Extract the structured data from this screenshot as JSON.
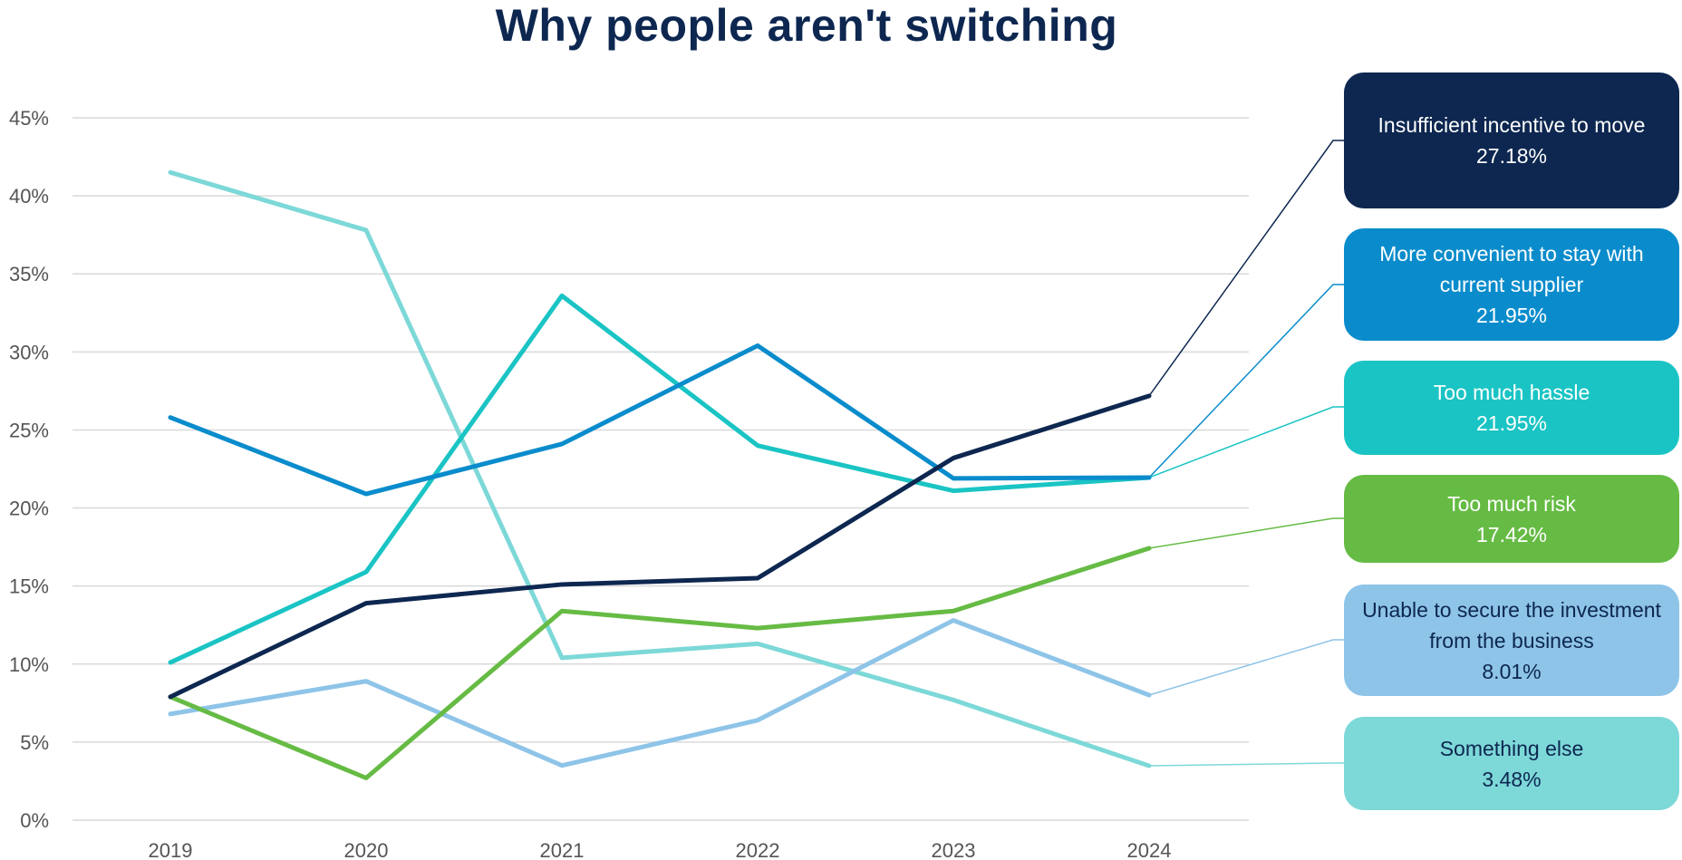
{
  "chart_data": {
    "type": "line",
    "title": "Why people aren't switching",
    "xlabel": "",
    "ylabel": "",
    "x": [
      "2019",
      "2020",
      "2021",
      "2022",
      "2023",
      "2024"
    ],
    "ylim": [
      0,
      45
    ],
    "yticks": [
      0,
      5,
      10,
      15,
      20,
      25,
      30,
      35,
      40,
      45
    ],
    "ytick_labels": [
      "0%",
      "5%",
      "10%",
      "15%",
      "20%",
      "25%",
      "30%",
      "35%",
      "40%",
      "45%"
    ],
    "grid": true,
    "legend": "callouts-right",
    "series": [
      {
        "name": "Insufficient incentive to move",
        "value_label": "27.18%",
        "color": "#0d2750",
        "text_color": "#ffffff",
        "values": [
          7.9,
          13.9,
          15.1,
          15.5,
          23.2,
          27.18
        ]
      },
      {
        "name": "More convenient to stay with current supplier",
        "value_label": "21.95%",
        "color": "#0a8ccc",
        "text_color": "#ffffff",
        "values": [
          25.8,
          20.9,
          24.1,
          30.4,
          21.9,
          21.95
        ]
      },
      {
        "name": "Too much hassle",
        "value_label": "21.95%",
        "color": "#1bc4c4",
        "text_color": "#ffffff",
        "values": [
          10.1,
          15.9,
          33.6,
          24.0,
          21.1,
          21.95
        ]
      },
      {
        "name": "Too much risk",
        "value_label": "17.42%",
        "color": "#66bb44",
        "text_color": "#ffffff",
        "values": [
          7.9,
          2.7,
          13.4,
          12.3,
          13.4,
          17.42
        ]
      },
      {
        "name": "Unable to secure the investment from the business",
        "value_label": "8.01%",
        "color": "#8ec4e8",
        "text_color": "#0d2750",
        "values": [
          6.8,
          8.9,
          3.5,
          6.4,
          12.8,
          8.01
        ]
      },
      {
        "name": "Something else",
        "value_label": "3.48%",
        "color": "#7dd8d8",
        "text_color": "#0d2750",
        "values": [
          41.5,
          37.8,
          10.4,
          11.3,
          7.7,
          3.48
        ]
      }
    ]
  }
}
